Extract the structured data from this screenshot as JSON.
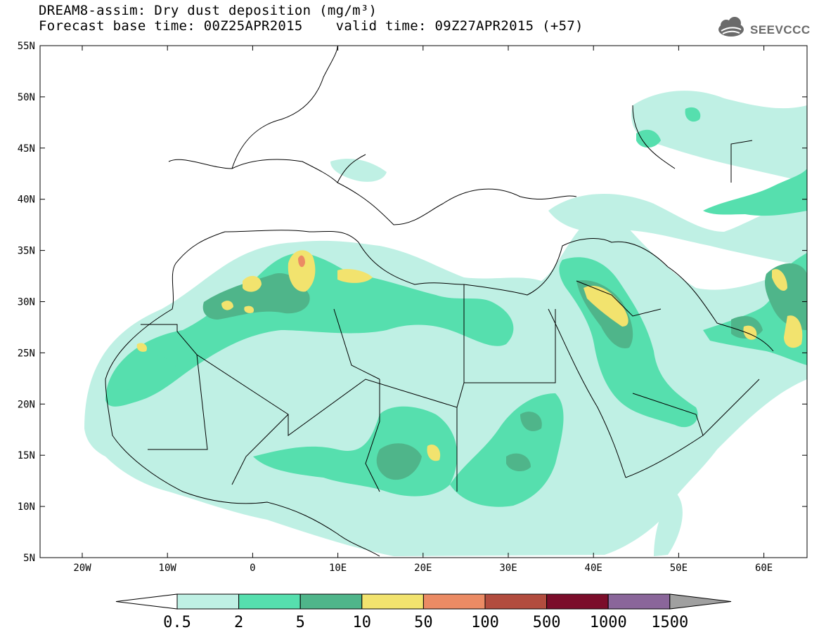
{
  "header": {
    "title": "DREAM8-assim: Dry dust deposition (mg/m³)",
    "base_time_label": "Forecast base time: 00Z25APR2015",
    "valid_time_label": "valid time: 09Z27APR2015 (+57)"
  },
  "logo": {
    "text": "SEEVCCC",
    "icon": "cloud-icon"
  },
  "axes": {
    "lat_labels": [
      "55N",
      "50N",
      "45N",
      "40N",
      "35N",
      "30N",
      "25N",
      "20N",
      "15N",
      "10N",
      "5N"
    ],
    "lon_labels": [
      "20W",
      "10W",
      "0",
      "10E",
      "20E",
      "30E",
      "40E",
      "50E",
      "60E"
    ]
  },
  "colorbar": {
    "labels": [
      "0.5",
      "2",
      "5",
      "10",
      "50",
      "100",
      "500",
      "1000",
      "1500"
    ],
    "colors": [
      "#bff0e4",
      "#56dfae",
      "#4fb58a",
      "#f2e36e",
      "#eb8b64",
      "#b24c3e",
      "#7b0d2a",
      "#8a669a",
      "#a0a0a0"
    ]
  },
  "colors": {
    "land_line": "#000000",
    "light": "#bff0e4",
    "mid": "#56dfae",
    "dark": "#4fb58a",
    "yellow": "#f2e36e",
    "orange": "#eb8b64"
  }
}
